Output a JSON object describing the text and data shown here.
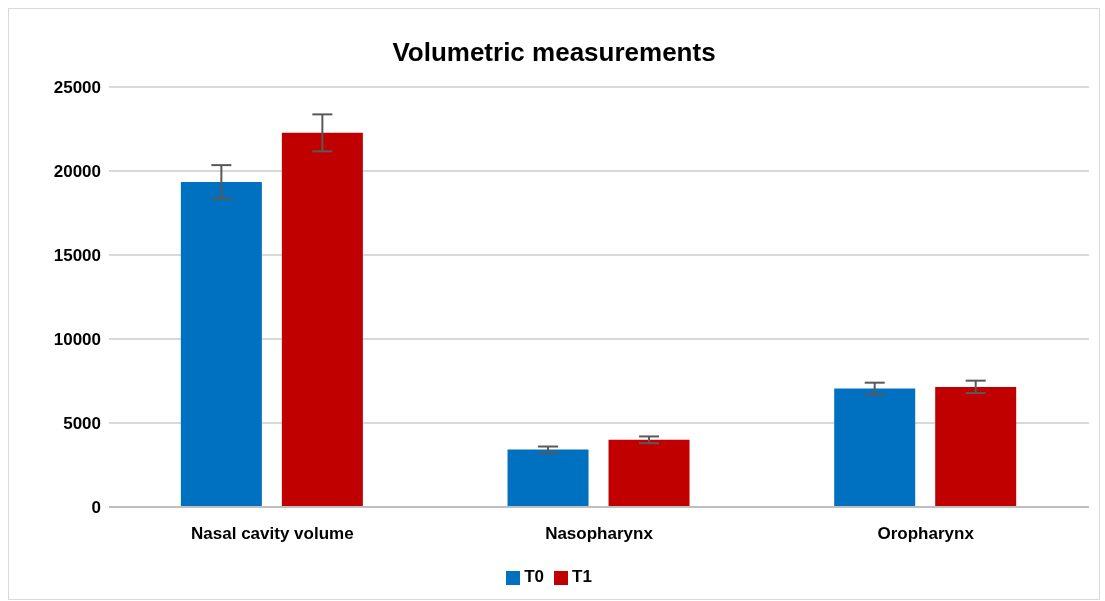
{
  "chart_data": {
    "type": "bar",
    "title": "Volumetric measurements",
    "categories": [
      "Nasal cavity volume",
      "Nasopharynx",
      "Oropharynx"
    ],
    "series": [
      {
        "name": "T0",
        "color": "#0070c0",
        "values": [
          19350,
          3420,
          7050
        ],
        "errors": [
          1000,
          180,
          350
        ]
      },
      {
        "name": "T1",
        "color": "#c00000",
        "values": [
          22270,
          4000,
          7150
        ],
        "errors": [
          1100,
          200,
          370
        ]
      }
    ],
    "ylim": [
      0,
      25000
    ],
    "yticks": [
      0,
      5000,
      10000,
      15000,
      20000,
      25000
    ],
    "grid": "y",
    "legend": "bottom"
  }
}
